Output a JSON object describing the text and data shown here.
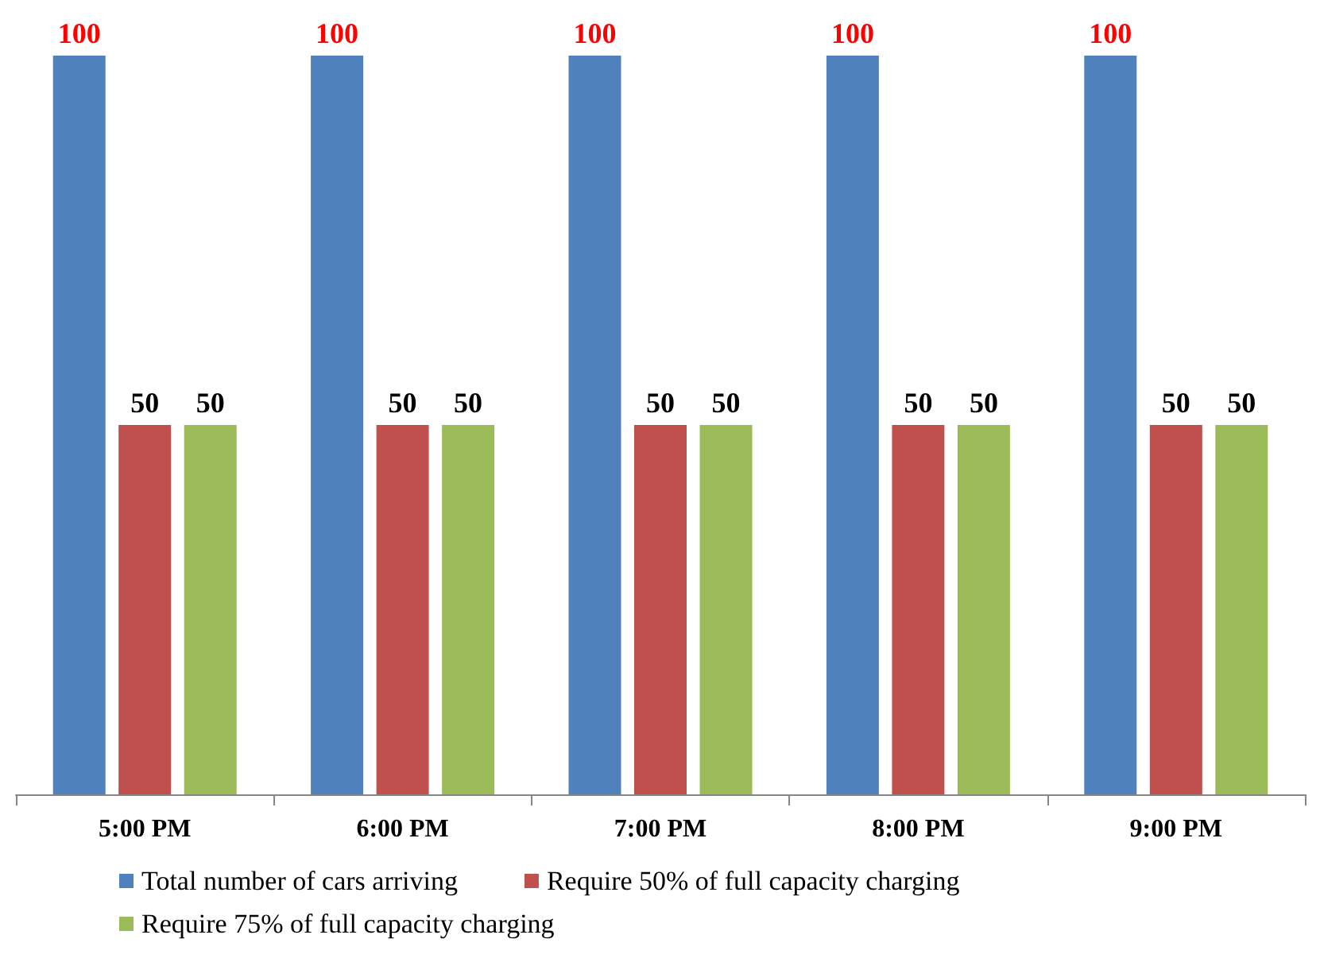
{
  "chart_data": {
    "type": "bar",
    "categories": [
      "5:00 PM",
      "6:00 PM",
      "7:00 PM",
      "8:00 PM",
      "9:00 PM"
    ],
    "series": [
      {
        "name": "Total number of cars arriving",
        "color": "#4f81bd",
        "values": [
          100,
          100,
          100,
          100,
          100
        ]
      },
      {
        "name": "Require 50% of full capacity charging",
        "color": "#c0504d",
        "values": [
          50,
          50,
          50,
          50,
          50
        ]
      },
      {
        "name": "Require 75% of full capacity charging",
        "color": "#9bbb59",
        "values": [
          50,
          50,
          50,
          50,
          50
        ]
      }
    ],
    "data_labels": true,
    "legend": "bottom",
    "grid": false
  }
}
